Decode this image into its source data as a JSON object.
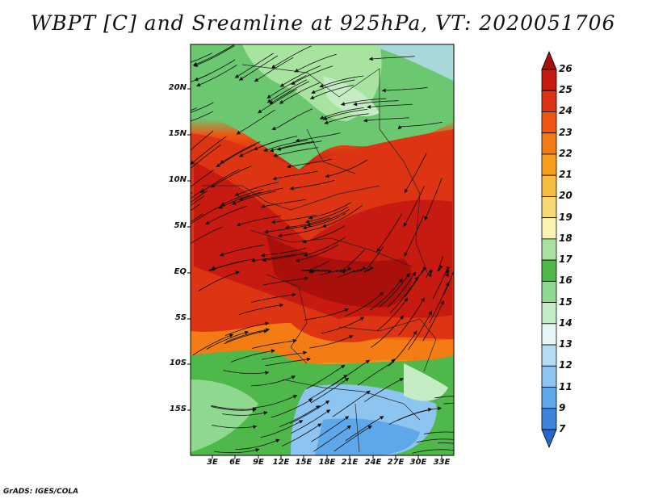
{
  "title": "WBPT [C] and Sreamline at 925hPa, VT: 2020051706",
  "credit": "GrADS: IGES/COLA",
  "lat_labels": [
    "20N",
    "15N",
    "10N",
    "5N",
    "EQ",
    "5S",
    "10S",
    "15S"
  ],
  "lon_labels": [
    "3E",
    "6E",
    "9E",
    "12E",
    "15E",
    "18E",
    "21E",
    "24E",
    "27E",
    "30E",
    "33E"
  ],
  "colorbar": {
    "labels": [
      "26",
      "25",
      "24",
      "23",
      "22",
      "21",
      "20",
      "19",
      "18",
      "17",
      "16",
      "15",
      "14",
      "13",
      "12",
      "11",
      "9",
      "7"
    ],
    "colors": [
      "#a50f0a",
      "#c71a10",
      "#dd3414",
      "#ee5612",
      "#f47c15",
      "#f79e1a",
      "#f6bd3f",
      "#f7d973",
      "#fbf3b0",
      "#a8e4a0",
      "#4fb84a",
      "#8fd88f",
      "#c6ecc6",
      "#e7f6f7",
      "#b6dcf5",
      "#8ec4f0",
      "#5ea7e8",
      "#3c84dc",
      "#2864cc"
    ],
    "units": "C"
  },
  "map": {
    "lon_range": [
      0,
      34
    ],
    "lat_range": [
      -20,
      24
    ],
    "field": "Wet bulb potential temperature at 925hPa with streamlines"
  }
}
